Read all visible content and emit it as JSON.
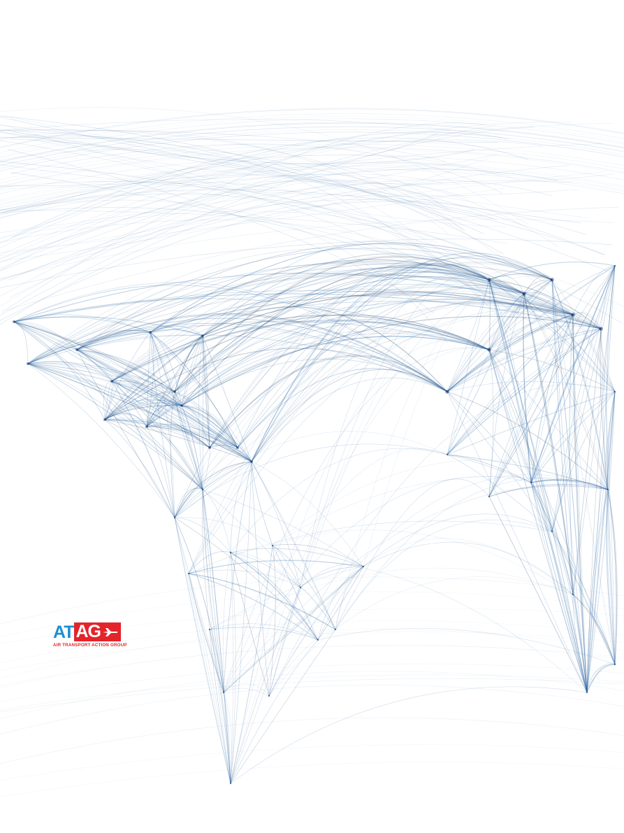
{
  "map": {
    "line_color": "#1f5fa0",
    "dark_color": "#0b2a55",
    "background": "#ffffff",
    "icon": "flight-routes-world-map"
  },
  "logo": {
    "letters_blue": "AT",
    "letters_red": "AG",
    "tagline": "AIR TRANSPORT ACTION GROUP",
    "blue_color": "#1b8fd2",
    "red_color": "#e3242b",
    "icon": "airplane-icon"
  }
}
